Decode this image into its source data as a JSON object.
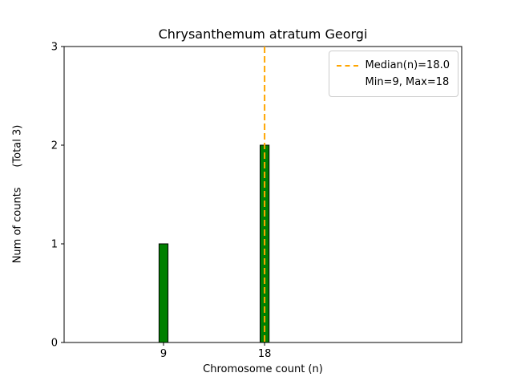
{
  "chart_data": {
    "type": "bar",
    "title": "Chrysanthemum atratum Georgi",
    "xlabel": "Chromosome count (n)",
    "ylabel": "Num of counts      (Total 3)",
    "categories": [
      9,
      18
    ],
    "values": [
      1,
      2
    ],
    "total_counts": 3,
    "bar_color": "#008000",
    "bar_edge_color": "#000000",
    "bar_width_units": 0.8,
    "xlim": [
      0.15,
      35.55
    ],
    "ylim": [
      0,
      3
    ],
    "xticks": [
      9,
      18
    ],
    "yticks": [
      0,
      1,
      2,
      3
    ],
    "grid": false,
    "median_line": {
      "x": 18,
      "color": "#ffa500",
      "style": "dashed",
      "label": "Median(n)=18.0"
    },
    "legend": {
      "position": "top-right",
      "entries": [
        {
          "sample": "dashed-orange-line",
          "label": "Median(n)=18.0"
        },
        {
          "sample": "none",
          "label": "Min=9, Max=18"
        }
      ]
    }
  }
}
